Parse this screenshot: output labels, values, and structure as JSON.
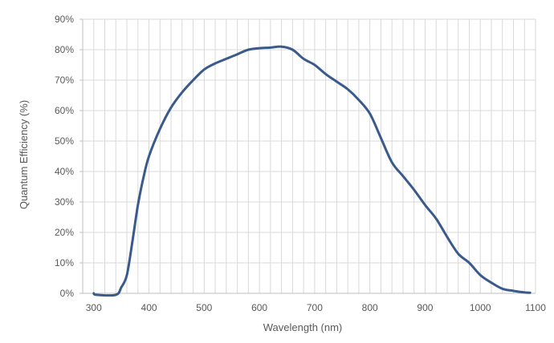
{
  "colors": {
    "line": "#3a5a8c",
    "grid": "#d9d9d9",
    "axis": "#bfbfbf",
    "text": "#595959",
    "background": "#ffffff"
  },
  "chart_data": {
    "type": "line",
    "title": "",
    "xlabel": "Wavelength (nm)",
    "ylabel": "Quantum Efficiency (%)",
    "xlim": [
      280,
      1100
    ],
    "ylim": [
      0,
      90
    ],
    "x_ticks": [
      300,
      400,
      500,
      600,
      700,
      800,
      900,
      1000,
      1100
    ],
    "x_tick_labels": [
      "300",
      "400",
      "500",
      "600",
      "700",
      "800",
      "900",
      "1000",
      "1100"
    ],
    "y_ticks": [
      0,
      10,
      20,
      30,
      40,
      50,
      60,
      70,
      80,
      90
    ],
    "y_tick_labels": [
      "0%",
      "10%",
      "20%",
      "30%",
      "40%",
      "50%",
      "60%",
      "70%",
      "80%",
      "90%"
    ],
    "x_minor_grid_step": 20,
    "grid": true,
    "legend": "none",
    "series": [
      {
        "x": [
          300,
          305,
          340,
          350,
          360,
          370,
          380,
          390,
          400,
          420,
          440,
          460,
          480,
          500,
          520,
          540,
          560,
          580,
          600,
          620,
          640,
          660,
          680,
          700,
          720,
          740,
          760,
          780,
          800,
          820,
          840,
          860,
          880,
          900,
          920,
          940,
          960,
          980,
          1000,
          1020,
          1040,
          1060,
          1080,
          1090
        ],
        "y": [
          0,
          -0.5,
          -0.5,
          2,
          6,
          17,
          29,
          38,
          45,
          54,
          61,
          66,
          70,
          73.5,
          75.5,
          77,
          78.5,
          80,
          80.5,
          80.7,
          81,
          80,
          77,
          75,
          72,
          69.5,
          67,
          63.5,
          59,
          51,
          43,
          38.5,
          34,
          29,
          24.5,
          18.5,
          13,
          10,
          6,
          3.5,
          1.5,
          0.8,
          0.3,
          0.2
        ]
      }
    ]
  }
}
